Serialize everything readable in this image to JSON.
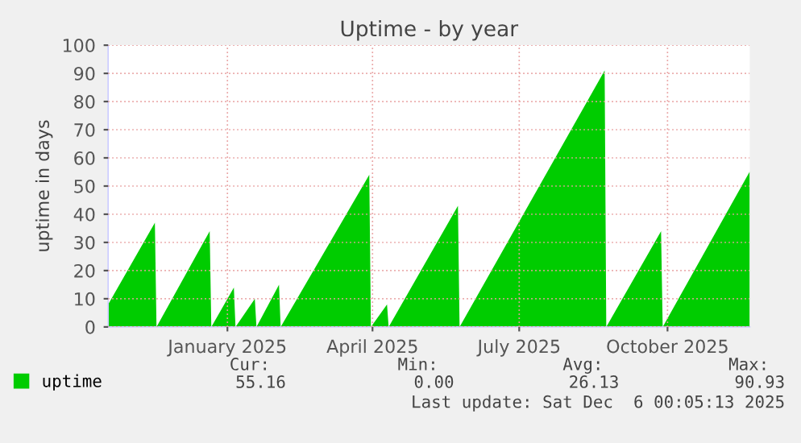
{
  "chart_data": {
    "type": "area",
    "title": "Uptime - by year",
    "ylabel": "uptime in days",
    "x": [
      "2024-11-03",
      "2024-12-02",
      "2024-12-03",
      "2025-01-05",
      "2025-01-06",
      "2025-01-20",
      "2025-01-21",
      "2025-02-02",
      "2025-02-03",
      "2025-02-17",
      "2025-02-18",
      "2025-04-14",
      "2025-04-15",
      "2025-04-25",
      "2025-04-26",
      "2025-06-08",
      "2025-06-09",
      "2025-09-07",
      "2025-09-08",
      "2025-10-12",
      "2025-10-13",
      "2025-12-06"
    ],
    "series": [
      {
        "name": "uptime",
        "color": "#00cc00",
        "values": [
          8,
          37,
          0,
          34,
          0,
          14,
          0,
          10,
          0,
          15,
          0,
          54,
          0,
          8,
          0,
          43,
          0,
          91,
          0,
          34,
          0,
          55.16
        ]
      }
    ],
    "xlim": [
      "2024-11-03",
      "2025-12-06"
    ],
    "xticks": [
      {
        "value": "2025-01-16",
        "label": "January 2025"
      },
      {
        "value": "2025-04-16",
        "label": "April 2025"
      },
      {
        "value": "2025-07-16",
        "label": "July 2025"
      },
      {
        "value": "2025-10-16",
        "label": "October 2025"
      }
    ],
    "ylim": [
      0,
      100
    ],
    "yticks": [
      0,
      10,
      20,
      30,
      40,
      50,
      60,
      70,
      80,
      90,
      100
    ],
    "grid": true,
    "legend": "bottom left",
    "annotations": [
      "Cur:",
      "Min:",
      "Avg:",
      "Max:",
      "55.16",
      "0.00",
      "26.13",
      "90.93",
      "Last update: Sat Dec  6 00:05:13 2025"
    ]
  }
}
